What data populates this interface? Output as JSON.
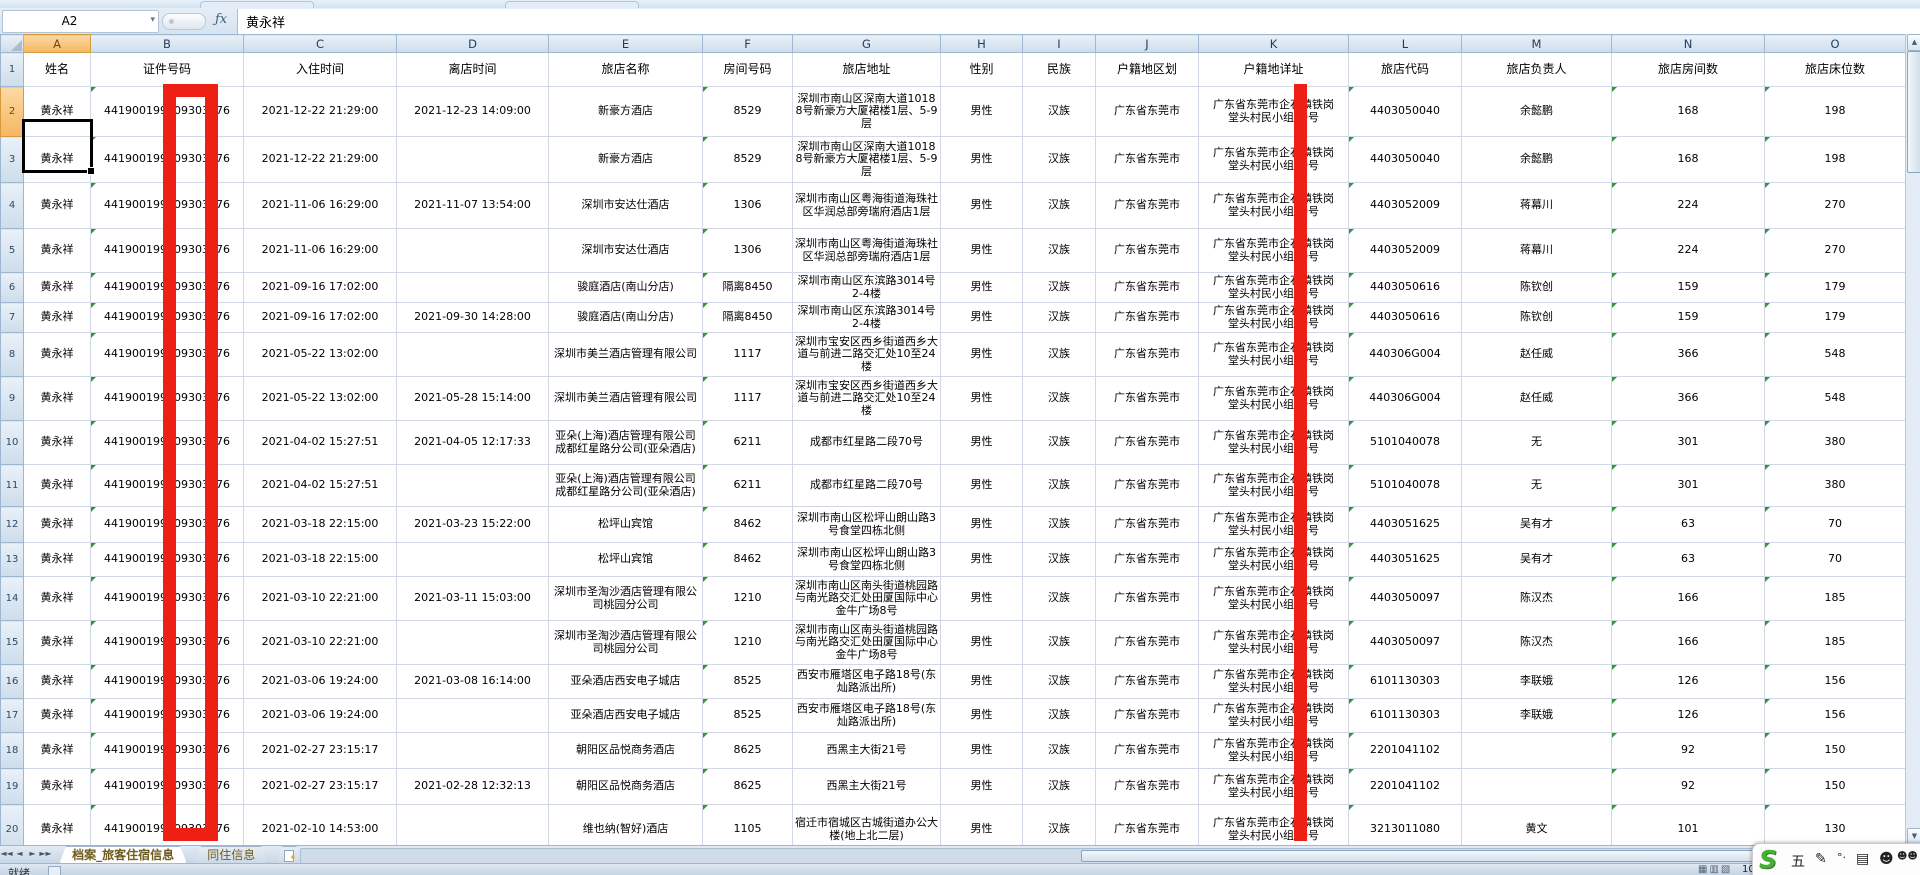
{
  "formula_bar": {
    "name_box_value": "A2",
    "fx_label": "ƒx",
    "formula_value": "黄永祥"
  },
  "sheet": {
    "column_letters": [
      "A",
      "B",
      "C",
      "D",
      "E",
      "F",
      "G",
      "H",
      "I",
      "J",
      "K",
      "L",
      "M",
      "N",
      "O"
    ],
    "selected_cell": "A2",
    "headers": [
      "姓名",
      "证件号码",
      "入住时间",
      "离店时间",
      "旅店名称",
      "房间号码",
      "旅店地址",
      "性别",
      "民族",
      "户籍地区划",
      "户籍地详址",
      "旅店代码",
      "旅店负责人",
      "旅店房间数",
      "旅店床位数"
    ],
    "rows": [
      {
        "row": 2,
        "name": "黄永祥",
        "id_number": "441900199009303376",
        "check_in": "2021-12-22 21:29:00",
        "check_out": "2021-12-23 14:09:00",
        "hotel_name": "新豪方酒店",
        "room_number": "8529",
        "hotel_address": "深圳市南山区深南大道10188号新豪方大厦裙楼1层、5-9层",
        "gender": "男性",
        "ethnicity": "汉族",
        "household_region": "广东省东莞市",
        "household_address": "广东省东莞市企石镇铁岗堂头村民小组10号",
        "hotel_code": "4403050040",
        "hotel_manager": "余懿鹏",
        "hotel_rooms": "168",
        "hotel_beds": "198"
      },
      {
        "row": 3,
        "name": "黄永祥",
        "id_number": "441900199009303376",
        "check_in": "2021-12-22 21:29:00",
        "check_out": "",
        "hotel_name": "新豪方酒店",
        "room_number": "8529",
        "hotel_address": "深圳市南山区深南大道10188号新豪方大厦裙楼1层、5-9层",
        "gender": "男性",
        "ethnicity": "汉族",
        "household_region": "广东省东莞市",
        "household_address": "广东省东莞市企石镇铁岗堂头村民小组10号",
        "hotel_code": "4403050040",
        "hotel_manager": "余懿鹏",
        "hotel_rooms": "168",
        "hotel_beds": "198"
      },
      {
        "row": 4,
        "name": "黄永祥",
        "id_number": "441900199009303376",
        "check_in": "2021-11-06 16:29:00",
        "check_out": "2021-11-07 13:54:00",
        "hotel_name": "深圳市安达仕酒店",
        "room_number": "1306",
        "hotel_address": "深圳市南山区粤海街道海珠社区华润总部旁瑞府酒店1层",
        "gender": "男性",
        "ethnicity": "汉族",
        "household_region": "广东省东莞市",
        "household_address": "广东省东莞市企石镇铁岗堂头村民小组10号",
        "hotel_code": "4403052009",
        "hotel_manager": "蒋幕川",
        "hotel_rooms": "224",
        "hotel_beds": "270"
      },
      {
        "row": 5,
        "name": "黄永祥",
        "id_number": "441900199009303376",
        "check_in": "2021-11-06 16:29:00",
        "check_out": "",
        "hotel_name": "深圳市安达仕酒店",
        "room_number": "1306",
        "hotel_address": "深圳市南山区粤海街道海珠社区华润总部旁瑞府酒店1层",
        "gender": "男性",
        "ethnicity": "汉族",
        "household_region": "广东省东莞市",
        "household_address": "广东省东莞市企石镇铁岗堂头村民小组10号",
        "hotel_code": "4403052009",
        "hotel_manager": "蒋幕川",
        "hotel_rooms": "224",
        "hotel_beds": "270"
      },
      {
        "row": 6,
        "name": "黄永祥",
        "id_number": "441900199009303376",
        "check_in": "2021-09-16 17:02:00",
        "check_out": "",
        "hotel_name": "骏庭酒店(南山分店)",
        "room_number": "隔离8450",
        "hotel_address": "深圳市南山区东滨路3014号2-4楼",
        "gender": "男性",
        "ethnicity": "汉族",
        "household_region": "广东省东莞市",
        "household_address": "广东省东莞市企石镇铁岗堂头村民小组10号",
        "hotel_code": "4403050616",
        "hotel_manager": "陈钦创",
        "hotel_rooms": "159",
        "hotel_beds": "179"
      },
      {
        "row": 7,
        "name": "黄永祥",
        "id_number": "441900199009303376",
        "check_in": "2021-09-16 17:02:00",
        "check_out": "2021-09-30 14:28:00",
        "hotel_name": "骏庭酒店(南山分店)",
        "room_number": "隔离8450",
        "hotel_address": "深圳市南山区东滨路3014号2-4楼",
        "gender": "男性",
        "ethnicity": "汉族",
        "household_region": "广东省东莞市",
        "household_address": "广东省东莞市企石镇铁岗堂头村民小组10号",
        "hotel_code": "4403050616",
        "hotel_manager": "陈钦创",
        "hotel_rooms": "159",
        "hotel_beds": "179"
      },
      {
        "row": 8,
        "name": "黄永祥",
        "id_number": "441900199009303376",
        "check_in": "2021-05-22 13:02:00",
        "check_out": "",
        "hotel_name": "深圳市美兰酒店管理有限公司",
        "room_number": "1117",
        "hotel_address": "深圳市宝安区西乡街道西乡大道与前进二路交汇处10至24楼",
        "gender": "男性",
        "ethnicity": "汉族",
        "household_region": "广东省东莞市",
        "household_address": "广东省东莞市企石镇铁岗堂头村民小组10号",
        "hotel_code": "440306G004",
        "hotel_manager": "赵任威",
        "hotel_rooms": "366",
        "hotel_beds": "548"
      },
      {
        "row": 9,
        "name": "黄永祥",
        "id_number": "441900199009303376",
        "check_in": "2021-05-22 13:02:00",
        "check_out": "2021-05-28 15:14:00",
        "hotel_name": "深圳市美兰酒店管理有限公司",
        "room_number": "1117",
        "hotel_address": "深圳市宝安区西乡街道西乡大道与前进二路交汇处10至24楼",
        "gender": "男性",
        "ethnicity": "汉族",
        "household_region": "广东省东莞市",
        "household_address": "广东省东莞市企石镇铁岗堂头村民小组10号",
        "hotel_code": "440306G004",
        "hotel_manager": "赵任威",
        "hotel_rooms": "366",
        "hotel_beds": "548"
      },
      {
        "row": 10,
        "name": "黄永祥",
        "id_number": "441900199009303376",
        "check_in": "2021-04-02 15:27:51",
        "check_out": "2021-04-05 12:17:33",
        "hotel_name": "亚朵(上海)酒店管理有限公司成都红星路分公司(亚朵酒店)",
        "room_number": "6211",
        "hotel_address": "成都市红星路二段70号",
        "gender": "男性",
        "ethnicity": "汉族",
        "household_region": "广东省东莞市",
        "household_address": "广东省东莞市企石镇铁岗堂头村民小组10号",
        "hotel_code": "5101040078",
        "hotel_manager": "无",
        "hotel_rooms": "301",
        "hotel_beds": "380"
      },
      {
        "row": 11,
        "name": "黄永祥",
        "id_number": "441900199009303376",
        "check_in": "2021-04-02 15:27:51",
        "check_out": "",
        "hotel_name": "亚朵(上海)酒店管理有限公司成都红星路分公司(亚朵酒店)",
        "room_number": "6211",
        "hotel_address": "成都市红星路二段70号",
        "gender": "男性",
        "ethnicity": "汉族",
        "household_region": "广东省东莞市",
        "household_address": "广东省东莞市企石镇铁岗堂头村民小组10号",
        "hotel_code": "5101040078",
        "hotel_manager": "无",
        "hotel_rooms": "301",
        "hotel_beds": "380"
      },
      {
        "row": 12,
        "name": "黄永祥",
        "id_number": "441900199009303376",
        "check_in": "2021-03-18 22:15:00",
        "check_out": "2021-03-23 15:22:00",
        "hotel_name": "松坪山宾馆",
        "room_number": "8462",
        "hotel_address": "深圳市南山区松坪山朗山路3号食堂四栋北侧",
        "gender": "男性",
        "ethnicity": "汉族",
        "household_region": "广东省东莞市",
        "household_address": "广东省东莞市企石镇铁岗堂头村民小组10号",
        "hotel_code": "4403051625",
        "hotel_manager": "吴有才",
        "hotel_rooms": "63",
        "hotel_beds": "70"
      },
      {
        "row": 13,
        "name": "黄永祥",
        "id_number": "441900199009303376",
        "check_in": "2021-03-18 22:15:00",
        "check_out": "",
        "hotel_name": "松坪山宾馆",
        "room_number": "8462",
        "hotel_address": "深圳市南山区松坪山朗山路3号食堂四栋北侧",
        "gender": "男性",
        "ethnicity": "汉族",
        "household_region": "广东省东莞市",
        "household_address": "广东省东莞市企石镇铁岗堂头村民小组10号",
        "hotel_code": "4403051625",
        "hotel_manager": "吴有才",
        "hotel_rooms": "63",
        "hotel_beds": "70"
      },
      {
        "row": 14,
        "name": "黄永祥",
        "id_number": "441900199009303376",
        "check_in": "2021-03-10 22:21:00",
        "check_out": "2021-03-11 15:03:00",
        "hotel_name": "深圳市圣淘沙酒店管理有限公司桃园分公司",
        "room_number": "1210",
        "hotel_address": "深圳市南山区南头街道桃园路与南光路交汇处田厦国际中心金牛广场8号",
        "gender": "男性",
        "ethnicity": "汉族",
        "household_region": "广东省东莞市",
        "household_address": "广东省东莞市企石镇铁岗堂头村民小组10号",
        "hotel_code": "4403050097",
        "hotel_manager": "陈汉杰",
        "hotel_rooms": "166",
        "hotel_beds": "185"
      },
      {
        "row": 15,
        "name": "黄永祥",
        "id_number": "441900199009303376",
        "check_in": "2021-03-10 22:21:00",
        "check_out": "",
        "hotel_name": "深圳市圣淘沙酒店管理有限公司桃园分公司",
        "room_number": "1210",
        "hotel_address": "深圳市南山区南头街道桃园路与南光路交汇处田厦国际中心金牛广场8号",
        "gender": "男性",
        "ethnicity": "汉族",
        "household_region": "广东省东莞市",
        "household_address": "广东省东莞市企石镇铁岗堂头村民小组10号",
        "hotel_code": "4403050097",
        "hotel_manager": "陈汉杰",
        "hotel_rooms": "166",
        "hotel_beds": "185"
      },
      {
        "row": 16,
        "name": "黄永祥",
        "id_number": "441900199009303376",
        "check_in": "2021-03-06 19:24:00",
        "check_out": "2021-03-08 16:14:00",
        "hotel_name": "亚朵酒店西安电子城店",
        "room_number": "8525",
        "hotel_address": "西安市雁塔区电子路18号(东灿路派出所)",
        "gender": "男性",
        "ethnicity": "汉族",
        "household_region": "广东省东莞市",
        "household_address": "广东省东莞市企石镇铁岗堂头村民小组10号",
        "hotel_code": "6101130303",
        "hotel_manager": "李联娥",
        "hotel_rooms": "126",
        "hotel_beds": "156"
      },
      {
        "row": 17,
        "name": "黄永祥",
        "id_number": "441900199009303376",
        "check_in": "2021-03-06 19:24:00",
        "check_out": "",
        "hotel_name": "亚朵酒店西安电子城店",
        "room_number": "8525",
        "hotel_address": "西安市雁塔区电子路18号(东灿路派出所)",
        "gender": "男性",
        "ethnicity": "汉族",
        "household_region": "广东省东莞市",
        "household_address": "广东省东莞市企石镇铁岗堂头村民小组10号",
        "hotel_code": "6101130303",
        "hotel_manager": "李联娥",
        "hotel_rooms": "126",
        "hotel_beds": "156"
      },
      {
        "row": 18,
        "name": "黄永祥",
        "id_number": "441900199009303376",
        "check_in": "2021-02-27 23:15:17",
        "check_out": "",
        "hotel_name": "朝阳区品悦商务酒店",
        "room_number": "8625",
        "hotel_address": "西黑主大街21号",
        "gender": "男性",
        "ethnicity": "汉族",
        "household_region": "广东省东莞市",
        "household_address": "广东省东莞市企石镇铁岗堂头村民小组10号",
        "hotel_code": "2201041102",
        "hotel_manager": "",
        "hotel_rooms": "92",
        "hotel_beds": "150"
      },
      {
        "row": 19,
        "name": "黄永祥",
        "id_number": "441900199009303376",
        "check_in": "2021-02-27 23:15:17",
        "check_out": "2021-02-28 12:32:13",
        "hotel_name": "朝阳区品悦商务酒店",
        "room_number": "8625",
        "hotel_address": "西黑主大街21号",
        "gender": "男性",
        "ethnicity": "汉族",
        "household_region": "广东省东莞市",
        "household_address": "广东省东莞市企石镇铁岗堂头村民小组10号",
        "hotel_code": "2201041102",
        "hotel_manager": "",
        "hotel_rooms": "92",
        "hotel_beds": "150"
      },
      {
        "row": 20,
        "name": "黄永祥",
        "id_number": "441900199009303376",
        "check_in": "2021-02-10 14:53:00",
        "check_out": "",
        "hotel_name": "维也纳(智好)酒店",
        "room_number": "1105",
        "hotel_address": "宿迁市宿城区古城街道办公大楼(地上北二层)",
        "gender": "男性",
        "ethnicity": "汉族",
        "household_region": "广东省东莞市",
        "household_address": "广东省东莞市企石镇铁岗堂头村民小组10号",
        "hotel_code": "3213011080",
        "hotel_manager": "黄文",
        "hotel_rooms": "101",
        "hotel_beds": "130"
      }
    ]
  },
  "tabs": {
    "items": [
      "档案_旅客住宿信息",
      "同住信息"
    ],
    "active": "档案_旅客住宿信息"
  },
  "status": {
    "ready_label": "就绪",
    "view_icons": "▦▥▧",
    "zoom_fragment": "10"
  },
  "ime_bar": {
    "logo": "S",
    "mode_label": "五",
    "icons": {
      "pen": "✎",
      "dot": "°·",
      "keyboard": "▤",
      "user": "☻",
      "users": "☻☻"
    }
  },
  "colors": {
    "redaction_red": "#ee2014",
    "selected_header_orange": "#f5b761",
    "error_triangle_green": "#2f9a2f",
    "grid_line": "#d0d7e5"
  }
}
